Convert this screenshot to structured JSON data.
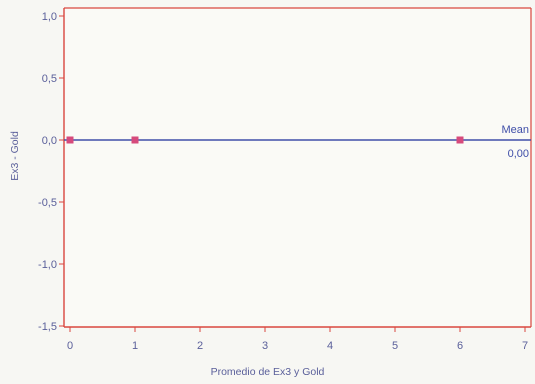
{
  "chart_data": {
    "type": "scatter",
    "xlabel": "Promedio de Ex3 y Gold",
    "ylabel": "Ex3 - Gold",
    "xlim": [
      0,
      7
    ],
    "ylim": [
      -1.5,
      1.0
    ],
    "x_ticks": [
      "0",
      "1",
      "2",
      "3",
      "4",
      "5",
      "6",
      "7"
    ],
    "y_ticks": [
      "1,0",
      "0,5",
      "0,0",
      "-0,5",
      "-1,0",
      "-1,5"
    ],
    "grid": false,
    "points": [
      {
        "x": 0,
        "y": 0
      },
      {
        "x": 1,
        "y": 0
      },
      {
        "x": 6,
        "y": 0
      }
    ],
    "mean_line": {
      "label": "Mean",
      "value_label": "0,00",
      "y": 0
    },
    "colors": {
      "frame": "#d9473f",
      "mean_line": "#3f4ea8",
      "points": "#d64a7c",
      "text": "#5a5f9a"
    }
  }
}
